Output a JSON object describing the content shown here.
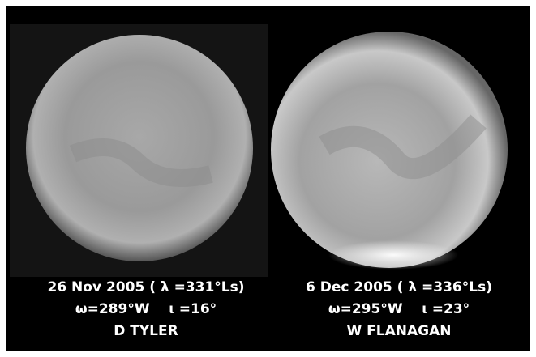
{
  "panels": [
    {
      "date": "26 Nov 2005 ( λ =331°Ls)",
      "geometry": "ω=289°W    ι =16°",
      "observer": "D TYLER"
    },
    {
      "date": "6 Dec 2005 ( λ =336°Ls)",
      "geometry": "ω=295°W    ι =23°",
      "observer": "W FLANAGAN"
    }
  ]
}
